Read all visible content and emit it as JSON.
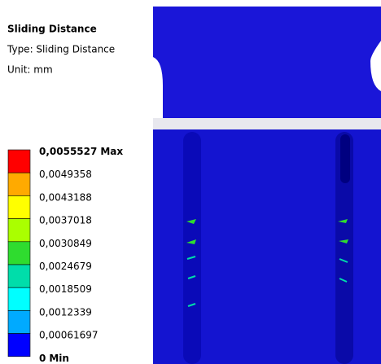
{
  "header": {
    "title": "Sliding Distance",
    "type": "Type: Sliding Distance",
    "unit": "Unit: mm"
  },
  "legend": {
    "labels": [
      "0,0055527",
      "0,0049358",
      "0,0043188",
      "0,0037018",
      "0,0030849",
      "0,0024679",
      "0,0018509",
      "0,0012339",
      "0,00061697",
      "0"
    ],
    "max_tag": "Max",
    "min_tag": "Min",
    "colors": [
      "#ff0000",
      "#ffaa00",
      "#ffff00",
      "#aaff00",
      "#2fdc2f",
      "#00ddaa",
      "#00ffff",
      "#00aaff",
      "#0000ff"
    ]
  }
}
